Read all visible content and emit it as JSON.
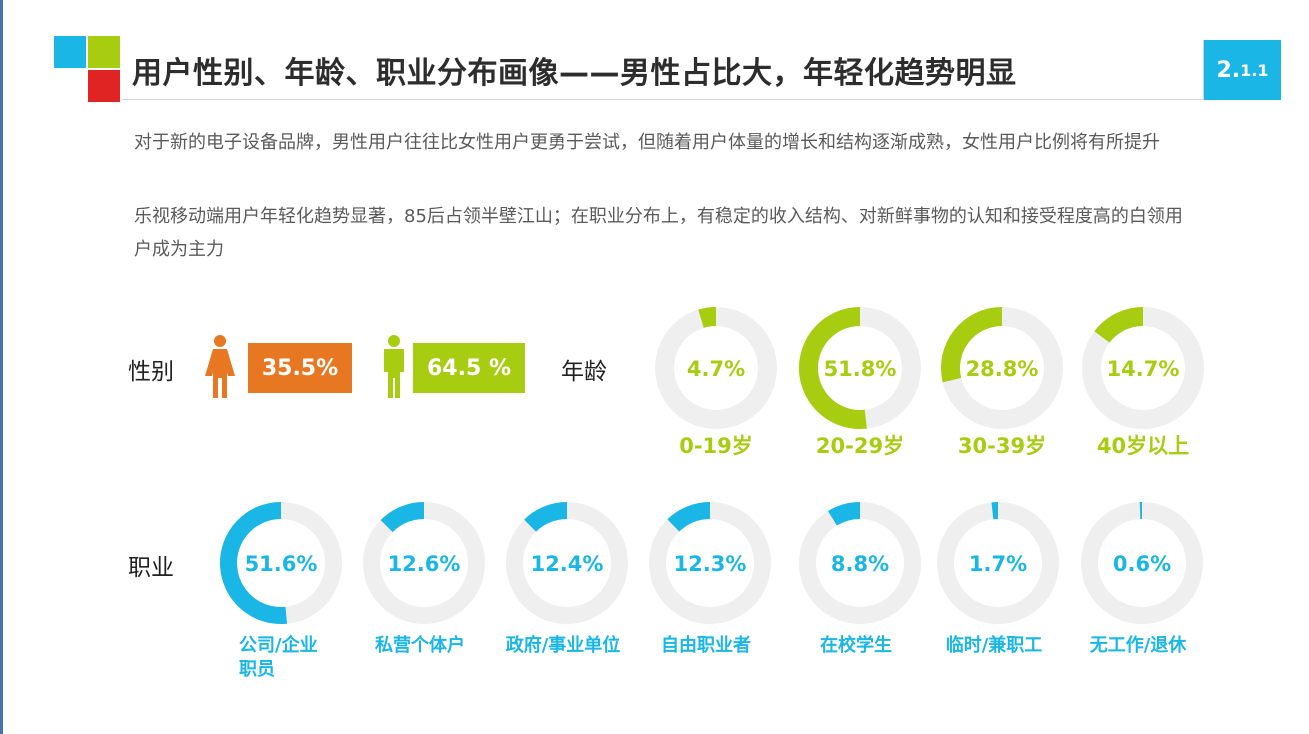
{
  "header": {
    "title": "用户性别、年龄、职业分布画像——男性占比大，年轻化趋势明显",
    "section_main": "2.",
    "section_sub": "1.1"
  },
  "description": {
    "line1": "对于新的电子设备品牌，男性用户往往比女性用户更勇于尝试，但随着用户体量的增长和结构逐渐成熟，女性用户比例将有所提升",
    "line2": "乐视移动端用户年轻化趋势显著，85后占领半壁江山；在职业分布上，有稳定的收入结构、对新鲜事物的认知和接受程度高的白领用户成为主力"
  },
  "colors": {
    "accent_blue": "#1ab6e6",
    "accent_green": "#a7cc10",
    "accent_red": "#e02424",
    "female_orange": "#e87722",
    "ring_track": "#efefef"
  },
  "icons": {
    "female": "female-person-icon",
    "male": "male-person-icon"
  },
  "chart_data": [
    {
      "type": "bar",
      "label": "性别",
      "categories": [
        "女",
        "男"
      ],
      "values": [
        35.5,
        64.5
      ],
      "value_labels": [
        "35.5%",
        "64.5 %"
      ]
    },
    {
      "type": "pie",
      "label": "年龄",
      "categories": [
        "0-19岁",
        "20-29岁",
        "30-39岁",
        "40岁以上"
      ],
      "values": [
        4.7,
        51.8,
        28.8,
        14.7
      ],
      "value_labels": [
        "4.7%",
        "51.8%",
        "28.8%",
        "14.7%"
      ]
    },
    {
      "type": "pie",
      "label": "职业",
      "categories": [
        "公司/企业职员",
        "私营个体户",
        "政府/事业单位",
        "自由职业者",
        "在校学生",
        "临时/兼职工",
        "无工作/退休"
      ],
      "values": [
        51.6,
        12.6,
        12.4,
        12.3,
        8.8,
        1.7,
        0.6
      ],
      "value_labels": [
        "51.6%",
        "12.6%",
        "12.4%",
        "12.3%",
        "8.8%",
        "1.7%",
        "0.6%"
      ]
    }
  ]
}
